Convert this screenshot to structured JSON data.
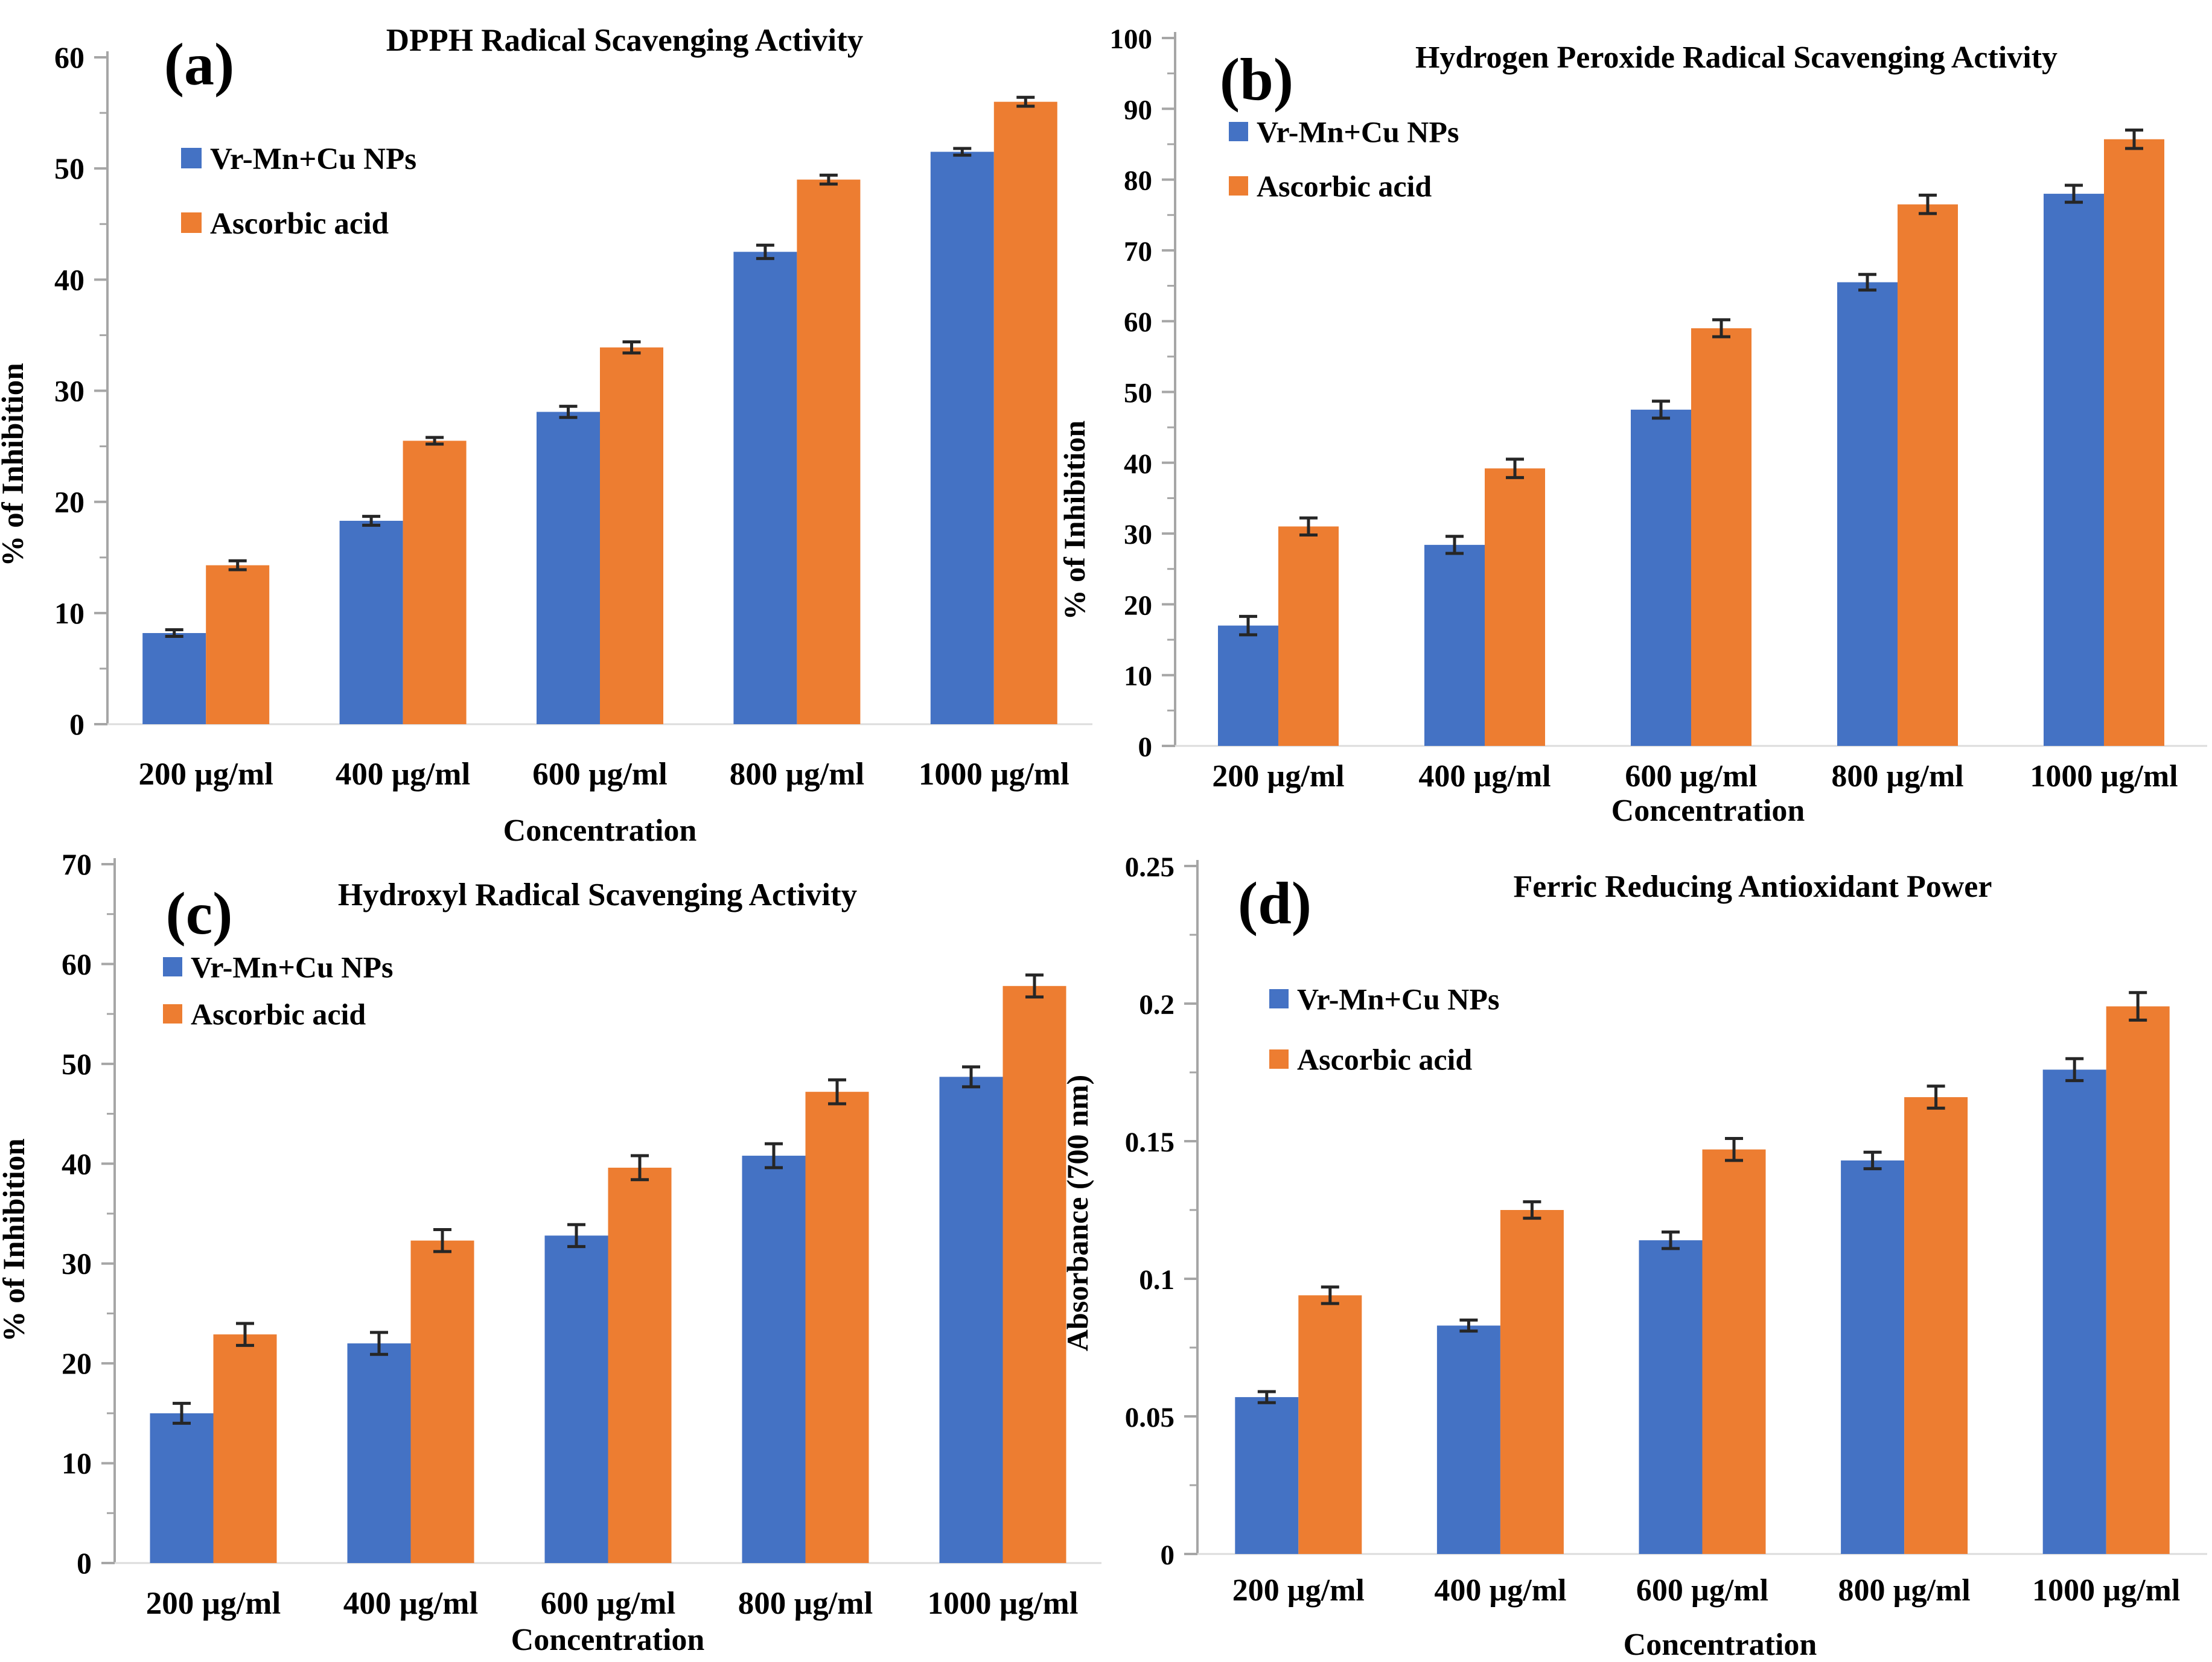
{
  "figure": {
    "description": "Four-panel antioxidant assay bar figure",
    "panel_letters": [
      "(a)",
      "(b)",
      "(c)",
      "(d)"
    ],
    "series_colors": {
      "vr_mn_cu_nps": "#4472C4",
      "ascorbic_acid": "#ED7D31"
    },
    "axis_color": "#a6a6a6",
    "baseline_color": "#dcdcdc",
    "error_bar_color": "#262626"
  },
  "chart_data": [
    {
      "type": "bar",
      "panel_label": "(a)",
      "title": "DPPH Radical Scavenging Activity",
      "xlabel": "Concentration",
      "ylabel": "%  of Inhibition",
      "categories": [
        "200 µg/ml",
        "400 µg/ml",
        "600 µg/ml",
        "800 µg/ml",
        "1000 µg/ml"
      ],
      "series": [
        {
          "name": "Vr-Mn+Cu NPs",
          "color": "#4472C4",
          "values": [
            8.2,
            18.3,
            28.1,
            42.5,
            51.5
          ],
          "errors": [
            0.3,
            0.4,
            0.5,
            0.6,
            0.3
          ]
        },
        {
          "name": "Ascorbic acid",
          "color": "#ED7D31",
          "values": [
            14.3,
            25.5,
            33.9,
            49.0,
            56.0
          ],
          "errors": [
            0.4,
            0.3,
            0.5,
            0.4,
            0.4
          ]
        }
      ],
      "ylim": [
        0,
        60
      ],
      "ytick_step": 10,
      "ytick_labels": [
        "0",
        "10",
        "20",
        "30",
        "40",
        "50",
        "60"
      ],
      "legend_position": "upper-left",
      "grid": false
    },
    {
      "type": "bar",
      "panel_label": "(b)",
      "title": "Hydrogen Peroxide Radical Scavenging Activity",
      "xlabel": "Concentration",
      "ylabel": "% of Inhibition",
      "categories": [
        "200 µg/ml",
        "400 µg/ml",
        "600 µg/ml",
        "800 µg/ml",
        "1000 µg/ml"
      ],
      "series": [
        {
          "name": "Vr-Mn+Cu NPs",
          "color": "#4472C4",
          "values": [
            17.0,
            28.4,
            47.5,
            65.5,
            78.0
          ],
          "errors": [
            1.3,
            1.2,
            1.2,
            1.1,
            1.2
          ]
        },
        {
          "name": "Ascorbic acid",
          "color": "#ED7D31",
          "values": [
            31.0,
            39.2,
            59.0,
            76.5,
            85.7
          ],
          "errors": [
            1.2,
            1.3,
            1.2,
            1.3,
            1.3
          ]
        }
      ],
      "ylim": [
        0,
        100
      ],
      "ytick_step": 10,
      "ytick_labels": [
        "0",
        "10",
        "20",
        "30",
        "40",
        "50",
        "60",
        "70",
        "80",
        "90",
        "100"
      ],
      "legend_position": "upper-left",
      "grid": false
    },
    {
      "type": "bar",
      "panel_label": "(c)",
      "title": "Hydroxyl  Radical Scavenging Activity",
      "xlabel": "Concentration",
      "ylabel": "% of  Inhibition",
      "categories": [
        "200 µg/ml",
        "400 µg/ml",
        "600 µg/ml",
        "800 µg/ml",
        "1000 µg/ml"
      ],
      "series": [
        {
          "name": "Vr-Mn+Cu NPs",
          "color": "#4472C4",
          "values": [
            15.0,
            22.0,
            32.8,
            40.8,
            48.7
          ],
          "errors": [
            1.0,
            1.1,
            1.1,
            1.2,
            1.0
          ]
        },
        {
          "name": "Ascorbic acid",
          "color": "#ED7D31",
          "values": [
            22.9,
            32.3,
            39.6,
            47.2,
            57.8
          ],
          "errors": [
            1.1,
            1.1,
            1.2,
            1.2,
            1.1
          ]
        }
      ],
      "ylim": [
        0,
        70
      ],
      "ytick_step": 10,
      "ytick_labels": [
        "0",
        "10",
        "20",
        "30",
        "40",
        "50",
        "60",
        "70"
      ],
      "legend_position": "upper-left",
      "grid": false
    },
    {
      "type": "bar",
      "panel_label": "(d)",
      "title": "Ferric Reducing Antioxidant Power",
      "xlabel": "Concentration",
      "ylabel": "Absorbance (700 nm)",
      "categories": [
        "200 µg/ml",
        "400 µg/ml",
        "600 µg/ml",
        "800 µg/ml",
        "1000 µg/ml"
      ],
      "series": [
        {
          "name": "Vr-Mn+Cu NPs",
          "color": "#4472C4",
          "values": [
            0.057,
            0.083,
            0.114,
            0.143,
            0.176
          ],
          "errors": [
            0.002,
            0.002,
            0.003,
            0.003,
            0.004
          ]
        },
        {
          "name": "Ascorbic acid",
          "color": "#ED7D31",
          "values": [
            0.094,
            0.125,
            0.147,
            0.166,
            0.199
          ],
          "errors": [
            0.003,
            0.003,
            0.004,
            0.004,
            0.005
          ]
        }
      ],
      "ylim": [
        0,
        0.25
      ],
      "ytick_step": 0.05,
      "ytick_labels": [
        "0",
        "0.05",
        "0.1",
        "0.15",
        "0.2",
        "0.25"
      ],
      "legend_position": "upper-left",
      "grid": false
    }
  ]
}
